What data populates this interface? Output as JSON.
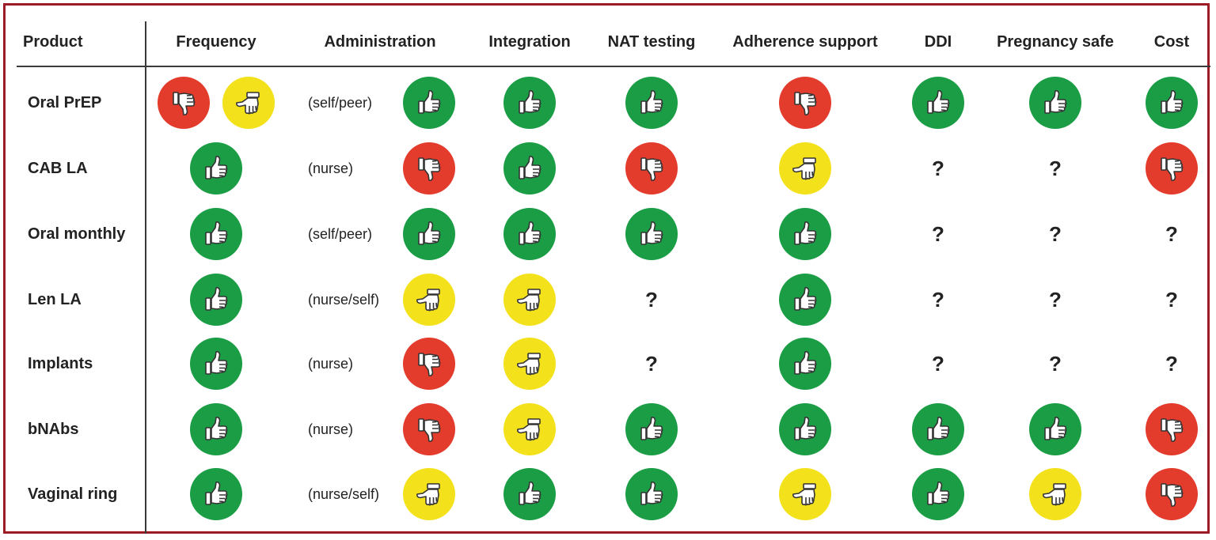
{
  "colors": {
    "up": "#1a9d45",
    "down": "#e33b2c",
    "side": "#f3e21b",
    "border": "#9c1b24"
  },
  "icons": {
    "up": "thumbs-up-icon",
    "down": "thumbs-down-icon",
    "side": "thumbs-sideways-icon",
    "unknown": "question-mark"
  },
  "columns": [
    "Product",
    "Frequency",
    "Administration",
    "Integration",
    "NAT testing",
    "Adherence support",
    "DDI",
    "Pregnancy safe",
    "Cost"
  ],
  "rows": [
    {
      "product": "Oral PrEP",
      "frequency": [
        "down",
        "side"
      ],
      "admin_note": "(self/peer)",
      "administration": "up",
      "integration": "up",
      "nat_testing": "up",
      "adherence_support": "down",
      "ddi": "up",
      "pregnancy_safe": "up",
      "cost": "up"
    },
    {
      "product": "CAB LA",
      "frequency": [
        "up"
      ],
      "admin_note": "(nurse)",
      "administration": "down",
      "integration": "up",
      "nat_testing": "down",
      "adherence_support": "side",
      "ddi": "?",
      "pregnancy_safe": "?",
      "cost": "down"
    },
    {
      "product": "Oral monthly",
      "frequency": [
        "up"
      ],
      "admin_note": "(self/peer)",
      "administration": "up",
      "integration": "up",
      "nat_testing": "up",
      "adherence_support": "up",
      "ddi": "?",
      "pregnancy_safe": "?",
      "cost": "?"
    },
    {
      "product": "Len LA",
      "frequency": [
        "up"
      ],
      "admin_note": "(nurse/self)",
      "administration": "side",
      "integration": "side",
      "nat_testing": "?",
      "adherence_support": "up",
      "ddi": "?",
      "pregnancy_safe": "?",
      "cost": "?"
    },
    {
      "product": "Implants",
      "frequency": [
        "up"
      ],
      "admin_note": "(nurse)",
      "administration": "down",
      "integration": "side",
      "nat_testing": "?",
      "adherence_support": "up",
      "ddi": "?",
      "pregnancy_safe": "?",
      "cost": "?"
    },
    {
      "product": "bNAbs",
      "frequency": [
        "up"
      ],
      "admin_note": "(nurse)",
      "administration": "down",
      "integration": "side",
      "nat_testing": "up",
      "adherence_support": "up",
      "ddi": "up",
      "pregnancy_safe": "up",
      "cost": "down"
    },
    {
      "product": "Vaginal ring",
      "frequency": [
        "up"
      ],
      "admin_note": "(nurse/self)",
      "administration": "side",
      "integration": "up",
      "nat_testing": "up",
      "adherence_support": "side",
      "ddi": "up",
      "pregnancy_safe": "side",
      "cost": "down"
    }
  ]
}
